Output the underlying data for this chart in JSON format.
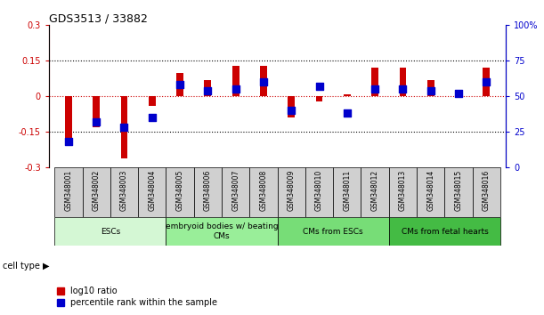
{
  "title": "GDS3513 / 33882",
  "samples": [
    "GSM348001",
    "GSM348002",
    "GSM348003",
    "GSM348004",
    "GSM348005",
    "GSM348006",
    "GSM348007",
    "GSM348008",
    "GSM348009",
    "GSM348010",
    "GSM348011",
    "GSM348012",
    "GSM348013",
    "GSM348014",
    "GSM348015",
    "GSM348016"
  ],
  "log10_ratio": [
    -0.19,
    -0.13,
    -0.26,
    -0.04,
    0.1,
    0.07,
    0.13,
    0.13,
    -0.09,
    -0.02,
    0.01,
    0.12,
    0.12,
    0.07,
    0.02,
    0.12
  ],
  "percentile_rank": [
    18,
    32,
    28,
    35,
    58,
    54,
    55,
    60,
    40,
    57,
    38,
    55,
    55,
    54,
    52,
    60
  ],
  "ylim_left": [
    -0.3,
    0.3
  ],
  "ylim_right": [
    0,
    100
  ],
  "yticks_left": [
    -0.3,
    -0.15,
    0,
    0.15,
    0.3
  ],
  "yticks_right": [
    0,
    25,
    50,
    75,
    100
  ],
  "ytick_labels_left": [
    "-0.3",
    "-0.15",
    "0",
    "0.15",
    "0.3"
  ],
  "ytick_labels_right": [
    "0",
    "25",
    "50",
    "75",
    "100%"
  ],
  "hlines": [
    0.15,
    -0.15
  ],
  "bar_color_red": "#cc0000",
  "bar_color_blue": "#0000cc",
  "zero_line_color": "#cc0000",
  "hline_color": "#000000",
  "cell_type_groups": [
    {
      "label": "ESCs",
      "start": 0,
      "end": 3
    },
    {
      "label": "embryoid bodies w/ beating\nCMs",
      "start": 4,
      "end": 7
    },
    {
      "label": "CMs from ESCs",
      "start": 8,
      "end": 11
    },
    {
      "label": "CMs from fetal hearts",
      "start": 12,
      "end": 15
    }
  ],
  "group_colors": [
    "#d4f7d4",
    "#99ee99",
    "#77dd77",
    "#44bb44"
  ],
  "cell_type_label": "cell type",
  "legend_red_label": "log10 ratio",
  "legend_blue_label": "percentile rank within the sample",
  "bar_width": 0.25,
  "sample_box_color": "#d0d0d0",
  "bg_color": "#ffffff"
}
